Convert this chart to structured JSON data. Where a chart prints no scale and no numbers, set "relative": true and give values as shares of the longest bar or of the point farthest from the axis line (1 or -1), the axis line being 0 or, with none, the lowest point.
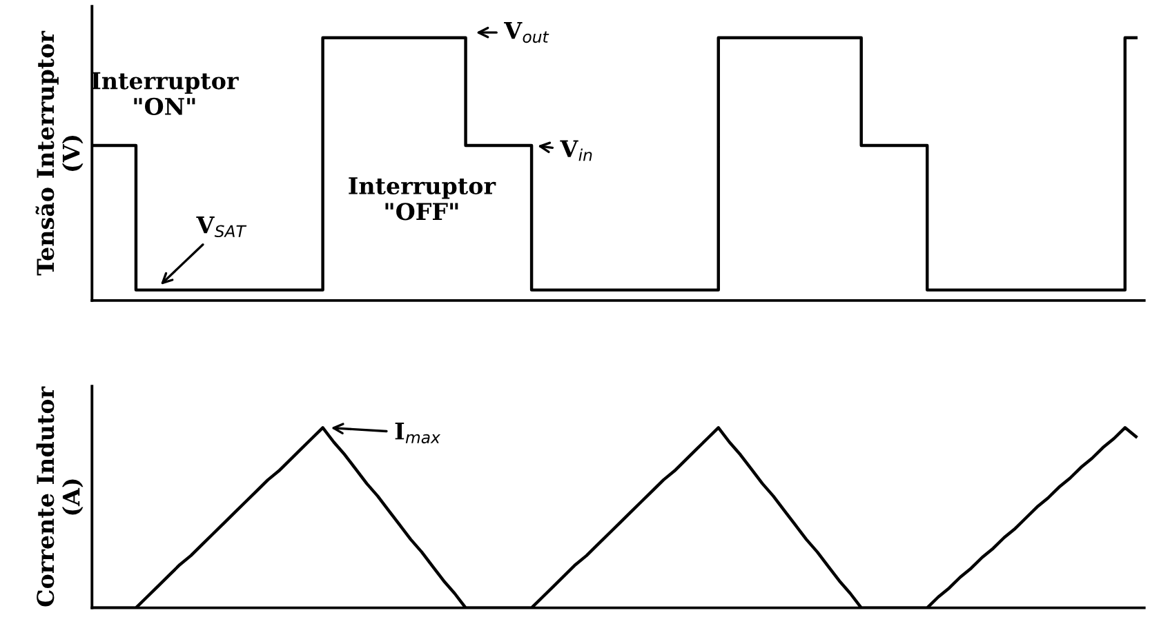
{
  "chart_data": [
    {
      "type": "step",
      "relative": true,
      "ylabel": "Tensão Interruptor\n(V)",
      "categories": [
        null,
        null,
        null,
        null,
        null,
        null,
        null,
        null,
        null,
        null,
        null,
        null,
        null,
        null,
        null,
        null,
        null,
        null,
        null,
        null,
        null,
        null,
        null,
        null,
        null,
        null,
        null,
        null,
        null,
        null,
        null,
        null,
        null,
        null,
        null,
        null,
        null,
        null,
        null,
        null,
        null,
        null,
        null,
        null,
        null,
        null,
        null,
        null,
        null,
        null,
        null,
        null,
        null,
        null,
        null,
        null,
        null,
        null,
        null,
        null,
        null,
        null,
        null,
        null,
        null,
        null,
        null,
        null,
        null,
        null,
        null,
        null,
        null,
        null,
        null,
        null,
        null,
        null,
        null,
        null,
        null,
        null,
        null,
        null,
        null,
        null,
        null,
        null,
        null,
        null,
        null,
        null,
        null,
        null,
        null,
        null
      ],
      "series": [
        {
          "color": "#000000",
          "values": [
            0.59,
            0.59,
            0.59,
            0.59,
            0.04,
            0.04,
            0.04,
            0.04,
            0.04,
            0.04,
            0.04,
            0.04,
            0.04,
            0.04,
            0.04,
            0.04,
            0.04,
            0.04,
            0.04,
            0.04,
            0.04,
            1,
            1,
            1,
            1,
            1,
            1,
            1,
            1,
            1,
            1,
            1,
            1,
            1,
            0.59,
            0.59,
            0.59,
            0.59,
            0.59,
            0.59,
            0.04,
            0.04,
            0.04,
            0.04,
            0.04,
            0.04,
            0.04,
            0.04,
            0.04,
            0.04,
            0.04,
            0.04,
            0.04,
            0.04,
            0.04,
            0.04,
            0.04,
            1,
            1,
            1,
            1,
            1,
            1,
            1,
            1,
            1,
            1,
            1,
            1,
            1,
            0.59,
            0.59,
            0.59,
            0.59,
            0.59,
            0.59,
            0.04,
            0.04,
            0.04,
            0.04,
            0.04,
            0.04,
            0.04,
            0.04,
            0.04,
            0.04,
            0.04,
            0.04,
            0.04,
            0.04,
            0.04,
            0.04,
            0.04,
            0.04,
            1,
            1
          ]
        }
      ],
      "annotations": [
        "Interruptor\n\"ON\"",
        "V$_{SAT}$",
        "V$_{out}$",
        "V$_{in}$",
        "Interruptor\n\"OFF\""
      ]
    },
    {
      "type": "line",
      "relative": true,
      "ylabel": "Corrente Indutor\n(A)",
      "categories": [
        null,
        null,
        null,
        null,
        null,
        null,
        null,
        null,
        null,
        null,
        null,
        null,
        null,
        null,
        null,
        null,
        null,
        null,
        null,
        null,
        null,
        null,
        null,
        null,
        null,
        null,
        null,
        null,
        null,
        null,
        null,
        null,
        null,
        null,
        null,
        null,
        null,
        null,
        null,
        null,
        null,
        null,
        null,
        null,
        null,
        null,
        null,
        null,
        null,
        null,
        null,
        null,
        null,
        null,
        null,
        null,
        null,
        null,
        null,
        null,
        null,
        null,
        null,
        null,
        null,
        null,
        null,
        null,
        null,
        null,
        null,
        null,
        null,
        null,
        null,
        null,
        null,
        null,
        null,
        null,
        null,
        null,
        null,
        null,
        null,
        null,
        null,
        null,
        null,
        null,
        null,
        null,
        null,
        null,
        null,
        null
      ],
      "series": [
        {
          "color": "#000000",
          "values": [
            0,
            0,
            0,
            0,
            0,
            0.06,
            0.12,
            0.18,
            0.24,
            0.29,
            0.35,
            0.41,
            0.47,
            0.53,
            0.59,
            0.65,
            0.71,
            0.76,
            0.82,
            0.88,
            0.94,
            1,
            0.92,
            0.85,
            0.77,
            0.69,
            0.62,
            0.54,
            0.46,
            0.38,
            0.31,
            0.23,
            0.15,
            0.08,
            0,
            0,
            0,
            0,
            0,
            0,
            0,
            0.06,
            0.12,
            0.18,
            0.24,
            0.29,
            0.35,
            0.41,
            0.47,
            0.53,
            0.59,
            0.65,
            0.71,
            0.76,
            0.82,
            0.88,
            0.94,
            1,
            0.92,
            0.85,
            0.77,
            0.69,
            0.62,
            0.54,
            0.46,
            0.38,
            0.31,
            0.23,
            0.15,
            0.08,
            0,
            0,
            0,
            0,
            0,
            0,
            0,
            0.06,
            0.11,
            0.17,
            0.22,
            0.28,
            0.33,
            0.39,
            0.44,
            0.5,
            0.56,
            0.61,
            0.67,
            0.72,
            0.78,
            0.83,
            0.89,
            0.94,
            1,
            0.95
          ]
        }
      ],
      "annotations": [
        "I$_{max}$"
      ]
    }
  ]
}
